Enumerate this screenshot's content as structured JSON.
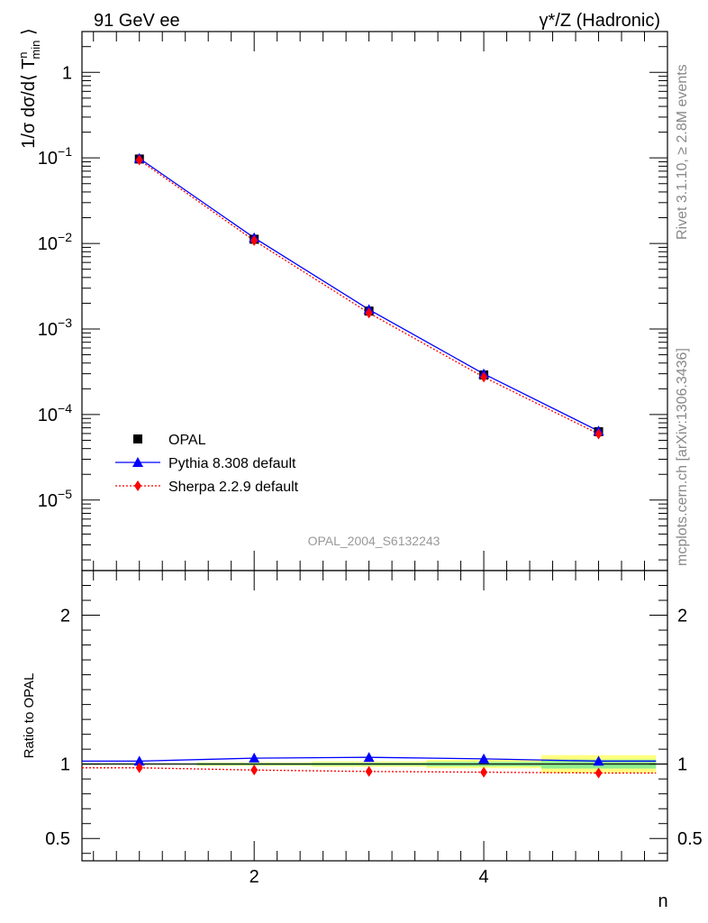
{
  "header": {
    "left_title": "91 GeV ee",
    "right_title": "γ*/Z (Hadronic)"
  },
  "side_text": {
    "rivet": "Rivet 3.1.10, ≥ 2.8M events",
    "mcplots": "mcplots.cern.ch [arXiv:1306.3436]"
  },
  "analysis_label": "OPAL_2004_S6132243",
  "colors": {
    "data": "#000000",
    "pythia": "#0000ff",
    "sherpa": "#ff0000",
    "band_inner": "#90ee90",
    "band_outer": "#ffff80"
  },
  "chart_data": [
    {
      "type": "scatter",
      "panel": "main",
      "ylabel": "1/σ dσ/d⟨ T^n_min ⟩",
      "xlabel": "",
      "y_scale": "log",
      "xlim": [
        0.5,
        5.6
      ],
      "ylim": [
        1.5e-06,
        3
      ],
      "y_tick_labels": [
        "1",
        "10^-1",
        "10^-2",
        "10^-3",
        "10^-4",
        "10^-5"
      ],
      "legend_position": "bottom-left",
      "x": [
        1,
        2,
        3,
        4,
        5
      ],
      "series": [
        {
          "name": "OPAL",
          "style": "markers",
          "marker": "square",
          "color": "#000000",
          "values": [
            0.097,
            0.0112,
            0.00162,
            0.00029,
            6.3e-05
          ]
        },
        {
          "name": "Pythia 8.308 default",
          "style": "solid line",
          "marker": "triangle",
          "color": "#0000ff",
          "values": [
            0.0989,
            0.01165,
            0.00169,
            0.000299,
            6.42e-05
          ]
        },
        {
          "name": "Sherpa 2.2.9 default",
          "style": "dotted line",
          "marker": "diamond",
          "color": "#ff0000",
          "values": [
            0.0945,
            0.0108,
            0.00154,
            0.000274,
            5.93e-05
          ]
        }
      ]
    },
    {
      "type": "line",
      "panel": "ratio",
      "ylabel": "Ratio to OPAL",
      "xlabel": "n",
      "xlim": [
        0.5,
        5.6
      ],
      "ylim": [
        0.35,
        2.3
      ],
      "x_tick_labels": [
        "2",
        "4"
      ],
      "y_tick_labels": [
        "0.5",
        "1",
        "2"
      ],
      "x": [
        1,
        2,
        3,
        4,
        5
      ],
      "data_band": [
        {
          "x_lo": 0.5,
          "x_hi": 1.5,
          "inner": 0.005,
          "outer": 0.005
        },
        {
          "x_lo": 1.5,
          "x_hi": 2.5,
          "inner": 0.008,
          "outer": 0.012
        },
        {
          "x_lo": 2.5,
          "x_hi": 3.5,
          "inner": 0.01,
          "outer": 0.018
        },
        {
          "x_lo": 3.5,
          "x_hi": 4.5,
          "inner": 0.015,
          "outer": 0.028
        },
        {
          "x_lo": 4.5,
          "x_hi": 5.5,
          "inner": 0.03,
          "outer": 0.06
        }
      ],
      "series": [
        {
          "name": "Pythia 8.308 default",
          "color": "#0000ff",
          "values": [
            1.02,
            1.04,
            1.045,
            1.035,
            1.02
          ]
        },
        {
          "name": "Sherpa 2.2.9 default",
          "color": "#ff0000",
          "values": [
            0.975,
            0.96,
            0.95,
            0.945,
            0.94
          ]
        }
      ]
    }
  ]
}
